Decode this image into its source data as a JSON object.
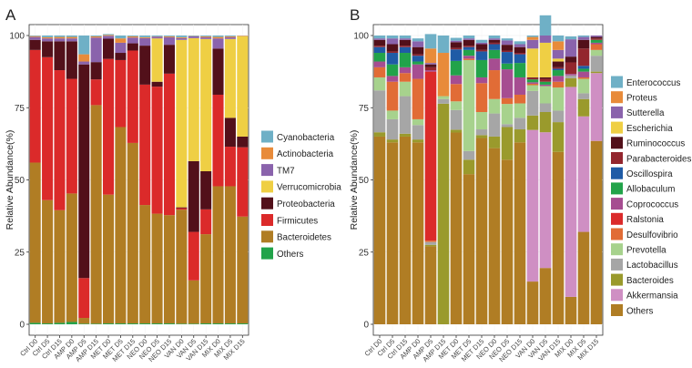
{
  "panels": [
    {
      "letter": "A",
      "chart_data": {
        "type": "bar",
        "stacked": true,
        "ylabel": "Relative Abundance(%)",
        "ylim": [
          0,
          100
        ],
        "yticks": [
          "0",
          "25",
          "50",
          "75",
          "100"
        ],
        "categories": [
          "Ctrl D0",
          "Ctrl D5",
          "Ctrl D15",
          "AMP D0",
          "AMP D5",
          "AMP D15",
          "MET D0",
          "MET D5",
          "MET D15",
          "NEO D0",
          "NEO D5",
          "NEO D15",
          "VAN D0",
          "VAN D5",
          "VAN D15",
          "MIX D0",
          "MIX D5",
          "MIX D15"
        ],
        "series": [
          {
            "name": "Others",
            "color": "#22A34A",
            "values": [
              0.5,
              0.3,
              0.5,
              0.8,
              0.2,
              0.2,
              0.3,
              0.3,
              0.3,
              0.3,
              0.3,
              0.3,
              0.2,
              0.2,
              0.3,
              0.3,
              0.3,
              0.3
            ]
          },
          {
            "name": "Bacteroidetes",
            "color": "#B07D24",
            "values": [
              55.5,
              42.7,
              39,
              44.5,
              2,
              75.7,
              44.6,
              68,
              62.5,
              41,
              38,
              37.5,
              39.5,
              15,
              30.9,
              47.5,
              47.5,
              37
            ]
          },
          {
            "name": "Firmicutes",
            "color": "#DB2A2A",
            "values": [
              39,
              49.5,
              48.5,
              39.7,
              13.8,
              8.9,
              47,
              23.2,
              32,
              41.7,
              44,
              49,
              0.5,
              16.8,
              8.6,
              31.7,
              13.7,
              24
            ]
          },
          {
            "name": "Proteobacteria",
            "color": "#52101A",
            "values": [
              3.5,
              5.5,
              10,
              13,
              74,
              6,
              7,
              2.5,
              2.5,
              13.5,
              1.7,
              10,
              0.3,
              24.5,
              13.2,
              16,
              10,
              3.7
            ]
          },
          {
            "name": "Verrucomicrobia",
            "color": "#EFCF44",
            "values": [
              0,
              0,
              0,
              0,
              0,
              0,
              0,
              0,
              0,
              0,
              15,
              0,
              58,
              42.6,
              45.8,
              0,
              27.3,
              34.8
            ]
          },
          {
            "name": "TM7",
            "color": "#8A63AC",
            "values": [
              1,
              1,
              1,
              1,
              1,
              8.5,
              1,
              3.5,
              2,
              2.6,
              0.6,
              2.6,
              0.6,
              0.6,
              0.6,
              3.5,
              0.6,
              0.1
            ]
          },
          {
            "name": "Actinobacteria",
            "color": "#E88B3A",
            "values": [
              0.3,
              0.4,
              0.5,
              0.5,
              2.5,
              0.4,
              0.3,
              1.5,
              0.4,
              0.3,
              0.1,
              0.3,
              0.3,
              0.1,
              0.3,
              0.5,
              0.3,
              0.1
            ]
          },
          {
            "name": "Cyanobacteria",
            "color": "#6FB0C6",
            "values": [
              0.2,
              0.6,
              0.5,
              0.5,
              6.5,
              0.3,
              0.3,
              1,
              0.3,
              0.6,
              0.3,
              0.3,
              0.6,
              0.2,
              0.3,
              0.5,
              0.3,
              0
            ]
          }
        ],
        "legend": [
          "Cyanobacteria",
          "Actinobacteria",
          "TM7",
          "Verrucomicrobia",
          "Proteobacteria",
          "Firmicutes",
          "Bacteroidetes",
          "Others"
        ]
      }
    },
    {
      "letter": "B",
      "chart_data": {
        "type": "bar",
        "stacked": true,
        "ylabel": "Relative Abundance(%)",
        "ylim": [
          0,
          100
        ],
        "yticks": [
          "0",
          "25",
          "50",
          "75",
          "100"
        ],
        "categories": [
          "Ctrl D0",
          "Ctrl D5",
          "Ctrl D15",
          "AMP D0",
          "AMP D5",
          "AMP D15",
          "MET D0",
          "MET D5",
          "MET D15",
          "NEO D0",
          "NEO D5",
          "NEO D15",
          "VAN D0",
          "VAN D5",
          "VAN D15",
          "MIX D0",
          "MIX D5",
          "MIX D15"
        ],
        "series": [
          {
            "name": "Others",
            "color": "#B07D24",
            "values": [
              65,
              63,
              65,
              63,
              27,
              0,
              66.4,
              52,
              64.5,
              61,
              57,
              63,
              14.8,
              19.5,
              59.7,
              9.5,
              32,
              63.5
            ]
          },
          {
            "name": "Akkermansia",
            "color": "#CF8FC3",
            "values": [
              0,
              0,
              0,
              0,
              0,
              0,
              0,
              0,
              0,
              0,
              0,
              0,
              52.5,
              47,
              0,
              72.7,
              40,
              23.5
            ]
          },
          {
            "name": "Bacteroides",
            "color": "#9A9A2C",
            "values": [
              1.5,
              1,
              1,
              1,
              0.5,
              76.4,
              1,
              5,
              1,
              4,
              11.3,
              4.5,
              5,
              7,
              10.3,
              3,
              6,
              0.5
            ]
          },
          {
            "name": "Lactobacillus",
            "color": "#A6A6A6",
            "values": [
              14.5,
              7,
              13,
              5,
              1,
              1.6,
              6.8,
              3,
              2,
              8,
              1,
              4,
              8.5,
              3,
              4,
              1,
              2,
              5.5
            ]
          },
          {
            "name": "Prevotella",
            "color": "#A7D28D",
            "values": [
              4.5,
              3,
              5,
              2,
              0,
              1,
              3,
              31.5,
              6,
              5,
              7,
              5,
              2,
              6,
              8,
              0,
              5,
              2
            ]
          },
          {
            "name": "Desulfovibrio",
            "color": "#E16C36",
            "values": [
              3.5,
              10,
              3,
              14,
              0.5,
              0,
              6,
              0.5,
              10,
              10,
              2,
              3,
              0.5,
              0,
              2,
              0,
              0.5,
              2
            ]
          },
          {
            "name": "Ralstonia",
            "color": "#DB2A2A",
            "values": [
              0,
              0,
              0,
              0,
              58.5,
              0,
              0,
              0,
              0,
              0,
              0,
              0,
              0,
              0,
              0,
              0,
              0,
              0
            ]
          },
          {
            "name": "Coprococcus",
            "color": "#A64D91",
            "values": [
              2,
              2,
              2,
              5,
              0.5,
              0,
              3,
              1,
              2,
              4,
              10,
              6,
              0.5,
              0.5,
              2,
              0.5,
              2,
              0.5
            ]
          },
          {
            "name": "Allobaculum",
            "color": "#22A34A",
            "values": [
              3,
              4,
              5,
              1,
              0,
              0,
              5,
              2,
              6,
              3,
              2,
              5,
              1,
              1,
              2,
              0,
              1,
              1
            ]
          },
          {
            "name": "Oscillospira",
            "color": "#1F5BA6",
            "values": [
              2,
              4,
              2,
              2,
              0,
              0,
              4,
              1,
              3,
              2,
              4,
              3,
              0,
              0,
              0.5,
              0,
              1,
              0
            ]
          },
          {
            "name": "Parabacteroides",
            "color": "#93262E",
            "values": [
              0.5,
              0.5,
              0.5,
              0.5,
              1,
              0,
              0.5,
              0.5,
              0.5,
              0.5,
              0.5,
              0.5,
              0.5,
              1,
              0.5,
              4,
              6,
              0.5
            ]
          },
          {
            "name": "Ruminococcus",
            "color": "#52101A",
            "values": [
              2,
              2.5,
              2,
              2.5,
              1,
              0,
              2,
              2,
              2,
              1,
              2,
              2,
              0.2,
              0.5,
              2,
              2,
              3,
              0.5
            ]
          },
          {
            "name": "Escherichia",
            "color": "#EFCF44",
            "values": [
              0,
              0,
              0,
              0,
              0,
              0,
              0,
              0,
              0,
              0,
              0,
              0,
              10,
              12,
              1,
              0,
              0,
              0
            ]
          },
          {
            "name": "Sutterella",
            "color": "#8A63AC",
            "values": [
              0.5,
              2,
              0.5,
              2,
              0.5,
              0,
              0.5,
              0.5,
              0.5,
              0.5,
              1.5,
              1,
              3,
              2.5,
              3,
              6,
              1,
              0.5
            ]
          },
          {
            "name": "Proteus",
            "color": "#E88B3A",
            "values": [
              0,
              0,
              0,
              0,
              5,
              15,
              0,
              0,
              0,
              0,
              0,
              0,
              1,
              0,
              3,
              0,
              0,
              0
            ]
          },
          {
            "name": "Enterococcus",
            "color": "#6FB0C6",
            "values": [
              1,
              1,
              1,
              1,
              5,
              6,
              1,
              1,
              1,
              1,
              0.7,
              1,
              0.5,
              7,
              2,
              1,
              0.5,
              0
            ]
          }
        ],
        "legend": [
          "Enterococcus",
          "Proteus",
          "Sutterella",
          "Escherichia",
          "Ruminococcus",
          "Parabacteroides",
          "Oscillospira",
          "Allobaculum",
          "Coprococcus",
          "Ralstonia",
          "Desulfovibrio",
          "Prevotella",
          "Lactobacillus",
          "Bacteroides",
          "Akkermansia",
          "Others"
        ]
      }
    }
  ]
}
